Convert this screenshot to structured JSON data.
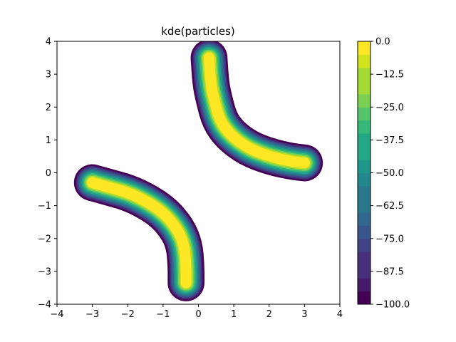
{
  "chart_data": {
    "type": "contourf",
    "title": "kde(particles)",
    "xlabel": "",
    "ylabel": "",
    "xlim": [
      -4,
      4
    ],
    "ylim": [
      -4,
      4
    ],
    "x_ticks": [
      "−4",
      "−3",
      "−2",
      "−1",
      "0",
      "1",
      "2",
      "3",
      "4"
    ],
    "x_tick_values": [
      -4,
      -3,
      -2,
      -1,
      0,
      1,
      2,
      3,
      4
    ],
    "y_ticks": [
      "−4",
      "−3",
      "−2",
      "−1",
      "0",
      "1",
      "2",
      "3",
      "4"
    ],
    "y_tick_values": [
      -4,
      -3,
      -2,
      -1,
      0,
      1,
      2,
      3,
      4
    ],
    "colorbar": {
      "colormap": "viridis",
      "range": [
        -100,
        0
      ],
      "levels": 20,
      "ticks": [
        "0.0",
        "−12.5",
        "−25.0",
        "−37.5",
        "−50.0",
        "−62.5",
        "−75.0",
        "−87.5",
        "−100.0"
      ],
      "tick_values": [
        0,
        -12.5,
        -25,
        -37.5,
        -50,
        -62.5,
        -75,
        -87.5,
        -100
      ]
    },
    "arms": [
      {
        "name": "upper-right arm",
        "path": [
          [
            0.3,
            3.5
          ],
          [
            0.35,
            2.7
          ],
          [
            0.45,
            2.2
          ],
          [
            0.6,
            1.6
          ],
          [
            0.9,
            1.15
          ],
          [
            1.4,
            0.75
          ],
          [
            2.0,
            0.5
          ],
          [
            2.6,
            0.35
          ],
          [
            3.0,
            0.3
          ]
        ]
      },
      {
        "name": "lower-left arm",
        "path": [
          [
            -3.0,
            -0.3
          ],
          [
            -2.5,
            -0.45
          ],
          [
            -2.0,
            -0.6
          ],
          [
            -1.5,
            -0.85
          ],
          [
            -1.0,
            -1.2
          ],
          [
            -0.6,
            -1.7
          ],
          [
            -0.4,
            -2.2
          ],
          [
            -0.35,
            -2.8
          ],
          [
            -0.35,
            -3.35
          ]
        ]
      }
    ],
    "grid": false,
    "legend": "colorbar-right"
  }
}
